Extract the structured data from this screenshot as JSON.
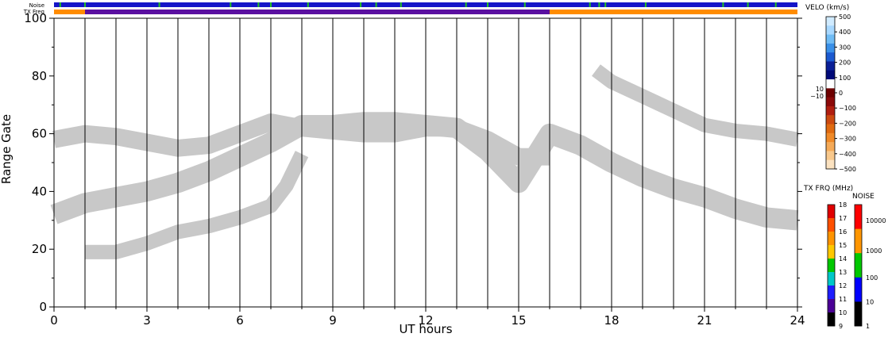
{
  "chart_data": {
    "type": "heatmap",
    "xlabel": "UT hours",
    "ylabel": "Range Gate",
    "xlim": [
      0,
      24
    ],
    "ylim": [
      0,
      100
    ],
    "x_ticks": [
      "0",
      "3",
      "6",
      "9",
      "12",
      "15",
      "18",
      "21",
      "24"
    ],
    "y_ticks": [
      "0",
      "20",
      "40",
      "60",
      "80",
      "100"
    ],
    "hour_gridlines": true,
    "ground_scatter_color": "#c8c8c8",
    "bands": {
      "noise_label": "Noise",
      "txfreq_label": "TX Freq",
      "noise_color": "#1515c8",
      "noise_marker_color": "#22c022",
      "noise_marker_hours": [
        0.2,
        1.0,
        3.4,
        5.7,
        6.6,
        7.0,
        8.2,
        9.9,
        10.4,
        11.2,
        13.3,
        14.0,
        15.2,
        17.3,
        17.6,
        17.8,
        19.1,
        21.6,
        22.4,
        23.3
      ],
      "txfreq_segments": [
        {
          "from": 0,
          "to": 1,
          "color": "#ff8c00"
        },
        {
          "from": 1,
          "to": 16,
          "color": "#5a0fa0"
        },
        {
          "from": 16,
          "to": 24,
          "color": "#ff8c00"
        }
      ]
    },
    "series": [
      {
        "name": "ground scatter",
        "kind": "ground",
        "x": [
          0,
          1,
          2,
          3,
          4,
          5,
          6,
          7,
          8,
          9,
          10,
          11,
          12,
          13,
          14,
          15,
          16,
          17,
          18,
          19,
          20,
          21,
          22,
          23,
          24
        ],
        "y": [
          32,
          36,
          38,
          40,
          43,
          47,
          52,
          57,
          63,
          63,
          64,
          64,
          63,
          62,
          54,
          43,
          60,
          56,
          50,
          45,
          41,
          38,
          34,
          31,
          30
        ],
        "width": 7
      },
      {
        "name": "ground scatter",
        "kind": "ground",
        "x": [
          0,
          1,
          2,
          3,
          4,
          5,
          6,
          7,
          8,
          9,
          10,
          11,
          12,
          13,
          14,
          15,
          16
        ],
        "y": [
          58,
          60,
          59,
          57,
          55,
          56,
          60,
          64,
          62,
          61,
          60,
          60,
          62,
          62,
          58,
          52,
          52
        ],
        "width": 6
      },
      {
        "name": "ground scatter",
        "kind": "ground",
        "x": [
          1,
          2,
          3,
          4,
          5,
          6,
          7,
          7.5,
          8
        ],
        "y": [
          19,
          19,
          22,
          26,
          28,
          31,
          35,
          42,
          53
        ],
        "width": 5
      },
      {
        "name": "ground scatter",
        "kind": "ground",
        "x": [
          17.5,
          18,
          19,
          20,
          21,
          22,
          23,
          24
        ],
        "y": [
          82,
          78,
          73,
          68,
          63,
          61,
          60,
          58
        ],
        "width": 5
      }
    ],
    "velocity_colorbar": {
      "title": "VELO (km/s)",
      "ticks": [
        "500",
        "400",
        "300",
        "200",
        "100",
        "0",
        "−100",
        "−200",
        "−300",
        "−400",
        "−500"
      ],
      "mid_labels": [
        "10",
        "−10"
      ],
      "colors": [
        "#d0ebff",
        "#a8d8ff",
        "#70bcf5",
        "#3a90e8",
        "#1c5ad0",
        "#0a1f96",
        "#000a78",
        "#ffffff",
        "#6e0000",
        "#8c0a0a",
        "#b01e10",
        "#cc4a10",
        "#e06a10",
        "#f08a28",
        "#f5aa58",
        "#f8c88c",
        "#fbe2c0"
      ],
      "range": [
        -500,
        500
      ]
    },
    "txfreq_colorbar": {
      "title": "TX FRQ (MHz)",
      "ticks": [
        "18",
        "17",
        "16",
        "15",
        "14",
        "13",
        "12",
        "11",
        "10",
        "9"
      ],
      "colors": [
        "#e00000",
        "#ff5000",
        "#ff9400",
        "#ffc800",
        "#00c800",
        "#00c8c8",
        "#1e1eff",
        "#4b0096",
        "#000000"
      ]
    },
    "noise_colorbar": {
      "title": "NOISE",
      "ticks": [
        "10000",
        "1000",
        "100",
        "10",
        "1"
      ],
      "colors": [
        "#ff0000",
        "#ff9600",
        "#00c800",
        "#0000ff",
        "#000000"
      ]
    }
  }
}
